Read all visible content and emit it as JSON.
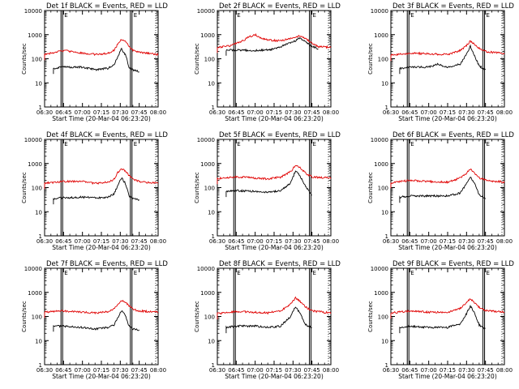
{
  "figure": {
    "colors": {
      "events": "#000000",
      "lld": "#e00000",
      "axes": "#000000"
    }
  },
  "chart_data": [
    {
      "type": "line",
      "title": "Det  1f BLACK = Events, RED = LLD",
      "xlabel": "Start Time (20-Mar-04 06:23:20)",
      "ylabel": "Counts/sec",
      "y_scale": "log",
      "ylim": [
        1,
        10000
      ],
      "xlim": [
        "06:30",
        "08:00"
      ],
      "x_ticks": [
        "06:30",
        "06:45",
        "07:00",
        "07:15",
        "07:30",
        "07:45",
        "08:00"
      ],
      "y_ticks": [
        "1",
        "10",
        "100",
        "1000",
        "10000"
      ],
      "markers": [
        {
          "x": "06:43",
          "label": "E"
        },
        {
          "x": "07:38",
          "label": "E"
        }
      ],
      "grid": false,
      "series": [
        {
          "name": "LLD",
          "color": "red",
          "x": [
            "06:30",
            "06:45",
            "07:00",
            "07:10",
            "07:20",
            "07:25",
            "07:28",
            "07:31",
            "07:34",
            "07:37",
            "07:40",
            "07:45",
            "08:00"
          ],
          "values": [
            150,
            220,
            170,
            150,
            170,
            220,
            400,
            620,
            520,
            330,
            230,
            190,
            150
          ]
        },
        {
          "name": "Events",
          "color": "black",
          "x": [
            "06:37",
            "06:45",
            "07:00",
            "07:10",
            "07:20",
            "07:25",
            "07:28",
            "07:31",
            "07:34",
            "07:37",
            "07:40",
            "07:45"
          ],
          "values": [
            40,
            45,
            45,
            35,
            40,
            55,
            120,
            260,
            150,
            45,
            35,
            30
          ]
        }
      ]
    },
    {
      "type": "line",
      "title": "Det  2f BLACK = Events, RED = LLD",
      "xlabel": "Start Time (20-Mar-04 06:23:20)",
      "ylabel": "Counts/sec",
      "y_scale": "log",
      "ylim": [
        1,
        10000
      ],
      "xlim": [
        "06:30",
        "08:00"
      ],
      "x_ticks": [
        "06:30",
        "06:45",
        "07:00",
        "07:15",
        "07:30",
        "07:45",
        "08:00"
      ],
      "y_ticks": [
        "1",
        "10",
        "100",
        "1000",
        "10000"
      ],
      "markers": [
        {
          "x": "06:43",
          "label": "E"
        },
        {
          "x": "07:43",
          "label": "E"
        }
      ],
      "grid": false,
      "series": [
        {
          "name": "LLD",
          "color": "red",
          "x": [
            "06:30",
            "06:40",
            "06:50",
            "06:55",
            "07:00",
            "07:05",
            "07:10",
            "07:20",
            "07:30",
            "07:35",
            "07:40",
            "07:45",
            "07:50",
            "08:00"
          ],
          "values": [
            300,
            340,
            550,
            800,
            1000,
            700,
            600,
            550,
            750,
            900,
            700,
            450,
            320,
            300
          ]
        },
        {
          "name": "Events",
          "color": "black",
          "x": [
            "06:37",
            "06:45",
            "07:00",
            "07:15",
            "07:30",
            "07:35",
            "07:40",
            "07:45",
            "07:50"
          ],
          "values": [
            230,
            230,
            220,
            250,
            500,
            700,
            520,
            330,
            260
          ]
        }
      ]
    },
    {
      "type": "line",
      "title": "Det  3f BLACK = Events, RED = LLD",
      "xlabel": "Start Time (20-Mar-04 06:23:20)",
      "ylabel": "Counts/sec",
      "y_scale": "log",
      "ylim": [
        1,
        10000
      ],
      "xlim": [
        "06:30",
        "08:00"
      ],
      "x_ticks": [
        "06:30",
        "06:45",
        "07:00",
        "07:15",
        "07:30",
        "07:45",
        "08:00"
      ],
      "y_ticks": [
        "1",
        "10",
        "100",
        "1000",
        "10000"
      ],
      "markers": [
        {
          "x": "06:43",
          "label": "E"
        },
        {
          "x": "07:43",
          "label": "E"
        }
      ],
      "grid": false,
      "series": [
        {
          "name": "LLD",
          "color": "red",
          "x": [
            "06:30",
            "06:45",
            "07:00",
            "07:15",
            "07:25",
            "07:30",
            "07:33",
            "07:36",
            "07:40",
            "07:45",
            "08:00"
          ],
          "values": [
            140,
            170,
            160,
            150,
            220,
            350,
            550,
            400,
            270,
            200,
            160
          ]
        },
        {
          "name": "Events",
          "color": "black",
          "x": [
            "06:37",
            "06:45",
            "07:00",
            "07:07",
            "07:15",
            "07:25",
            "07:30",
            "07:33",
            "07:36",
            "07:40",
            "07:45"
          ],
          "values": [
            40,
            45,
            45,
            60,
            45,
            60,
            150,
            330,
            150,
            50,
            35
          ]
        }
      ]
    },
    {
      "type": "line",
      "title": "Det  4f BLACK = Events, RED = LLD",
      "xlabel": "Start Time (20-Mar-04 06:23:20)",
      "ylabel": "Counts/sec",
      "y_scale": "log",
      "ylim": [
        1,
        10000
      ],
      "xlim": [
        "06:30",
        "08:00"
      ],
      "x_ticks": [
        "06:30",
        "06:45",
        "07:00",
        "07:15",
        "07:30",
        "07:45",
        "08:00"
      ],
      "y_ticks": [
        "1",
        "10",
        "100",
        "1000",
        "10000"
      ],
      "markers": [
        {
          "x": "06:43",
          "label": "E"
        },
        {
          "x": "07:38",
          "label": "E"
        }
      ],
      "grid": false,
      "series": [
        {
          "name": "LLD",
          "color": "red",
          "x": [
            "06:30",
            "06:45",
            "07:00",
            "07:10",
            "07:20",
            "07:25",
            "07:28",
            "07:31",
            "07:34",
            "07:37",
            "07:40",
            "07:45",
            "08:00"
          ],
          "values": [
            150,
            180,
            180,
            150,
            170,
            220,
            420,
            600,
            500,
            320,
            220,
            180,
            150
          ]
        },
        {
          "name": "Events",
          "color": "black",
          "x": [
            "06:37",
            "06:45",
            "07:00",
            "07:10",
            "07:20",
            "07:25",
            "07:28",
            "07:31",
            "07:34",
            "07:37",
            "07:40",
            "07:45"
          ],
          "values": [
            35,
            38,
            40,
            38,
            40,
            55,
            120,
            260,
            150,
            45,
            35,
            30
          ]
        }
      ]
    },
    {
      "type": "line",
      "title": "Det  5f BLACK = Events, RED = LLD",
      "xlabel": "Start Time (20-Mar-04 06:23:20)",
      "ylabel": "Counts/sec",
      "y_scale": "log",
      "ylim": [
        1,
        10000
      ],
      "xlim": [
        "06:30",
        "08:00"
      ],
      "x_ticks": [
        "06:30",
        "06:45",
        "07:00",
        "07:15",
        "07:30",
        "07:45",
        "08:00"
      ],
      "y_ticks": [
        "1",
        "10",
        "100",
        "1000",
        "10000"
      ],
      "markers": [
        {
          "x": "06:43",
          "label": "E"
        },
        {
          "x": "07:43",
          "label": "E"
        }
      ],
      "grid": false,
      "series": [
        {
          "name": "LLD",
          "color": "red",
          "x": [
            "06:30",
            "06:45",
            "07:00",
            "07:10",
            "07:20",
            "07:28",
            "07:32",
            "07:35",
            "07:40",
            "07:45",
            "08:00"
          ],
          "values": [
            240,
            280,
            250,
            230,
            270,
            450,
            850,
            700,
            400,
            280,
            250
          ]
        },
        {
          "name": "Events",
          "color": "black",
          "x": [
            "06:37",
            "06:45",
            "07:00",
            "07:10",
            "07:20",
            "07:28",
            "07:32",
            "07:35",
            "07:40",
            "07:45"
          ],
          "values": [
            70,
            75,
            70,
            65,
            75,
            150,
            500,
            350,
            110,
            50
          ]
        }
      ]
    },
    {
      "type": "line",
      "title": "Det  6f BLACK = Events, RED = LLD",
      "xlabel": "Start Time (20-Mar-04 06:23:20)",
      "ylabel": "Counts/sec",
      "y_scale": "log",
      "ylim": [
        1,
        10000
      ],
      "xlim": [
        "06:30",
        "08:00"
      ],
      "x_ticks": [
        "06:30",
        "06:45",
        "07:00",
        "07:15",
        "07:30",
        "07:45",
        "08:00"
      ],
      "y_ticks": [
        "1",
        "10",
        "100",
        "1000",
        "10000"
      ],
      "markers": [
        {
          "x": "06:43",
          "label": "E"
        },
        {
          "x": "07:43",
          "label": "E"
        }
      ],
      "grid": false,
      "series": [
        {
          "name": "LLD",
          "color": "red",
          "x": [
            "06:30",
            "06:45",
            "07:00",
            "07:15",
            "07:25",
            "07:30",
            "07:33",
            "07:36",
            "07:40",
            "07:45",
            "08:00"
          ],
          "values": [
            160,
            200,
            180,
            170,
            250,
            400,
            580,
            400,
            260,
            200,
            170
          ]
        },
        {
          "name": "Events",
          "color": "black",
          "x": [
            "06:37",
            "06:45",
            "07:00",
            "07:15",
            "07:25",
            "07:30",
            "07:33",
            "07:36",
            "07:40",
            "07:45"
          ],
          "values": [
            40,
            45,
            45,
            45,
            60,
            140,
            280,
            160,
            50,
            35
          ]
        }
      ]
    },
    {
      "type": "line",
      "title": "Det  7f BLACK = Events, RED = LLD",
      "xlabel": "Start Time (20-Mar-04 06:23:20)",
      "ylabel": "Counts/sec",
      "y_scale": "log",
      "ylim": [
        1,
        10000
      ],
      "xlim": [
        "06:30",
        "08:00"
      ],
      "x_ticks": [
        "06:30",
        "06:45",
        "07:00",
        "07:15",
        "07:30",
        "07:45",
        "08:00"
      ],
      "y_ticks": [
        "1",
        "10",
        "100",
        "1000",
        "10000"
      ],
      "markers": [
        {
          "x": "06:43",
          "label": "E"
        },
        {
          "x": "07:38",
          "label": "E"
        }
      ],
      "grid": false,
      "series": [
        {
          "name": "LLD",
          "color": "red",
          "x": [
            "06:30",
            "06:45",
            "07:00",
            "07:10",
            "07:20",
            "07:25",
            "07:28",
            "07:31",
            "07:34",
            "07:37",
            "07:40",
            "07:45",
            "08:00"
          ],
          "values": [
            150,
            170,
            150,
            140,
            160,
            210,
            330,
            450,
            400,
            270,
            200,
            170,
            150
          ]
        },
        {
          "name": "Events",
          "color": "black",
          "x": [
            "06:37",
            "06:45",
            "07:00",
            "07:10",
            "07:20",
            "07:25",
            "07:28",
            "07:31",
            "07:34",
            "07:37",
            "07:40",
            "07:45"
          ],
          "values": [
            40,
            40,
            35,
            30,
            35,
            45,
            90,
            170,
            110,
            40,
            30,
            28
          ]
        }
      ]
    },
    {
      "type": "line",
      "title": "Det  8f BLACK = Events, RED = LLD",
      "xlabel": "Start Time (20-Mar-04 06:23:20)",
      "ylabel": "Counts/sec",
      "y_scale": "log",
      "ylim": [
        1,
        10000
      ],
      "xlim": [
        "06:30",
        "08:00"
      ],
      "x_ticks": [
        "06:30",
        "06:45",
        "07:00",
        "07:15",
        "07:30",
        "07:45",
        "08:00"
      ],
      "y_ticks": [
        "1",
        "10",
        "100",
        "1000",
        "10000"
      ],
      "markers": [
        {
          "x": "06:43",
          "label": "E"
        },
        {
          "x": "07:43",
          "label": "E"
        }
      ],
      "grid": false,
      "series": [
        {
          "name": "LLD",
          "color": "red",
          "x": [
            "06:30",
            "06:45",
            "07:00",
            "07:10",
            "07:20",
            "07:28",
            "07:32",
            "07:35",
            "07:40",
            "07:45",
            "08:00"
          ],
          "values": [
            130,
            160,
            150,
            140,
            170,
            330,
            600,
            450,
            250,
            170,
            140
          ]
        },
        {
          "name": "Events",
          "color": "black",
          "x": [
            "06:37",
            "06:45",
            "07:00",
            "07:10",
            "07:20",
            "07:28",
            "07:32",
            "07:35",
            "07:40",
            "07:45"
          ],
          "values": [
            35,
            40,
            40,
            35,
            40,
            100,
            250,
            150,
            45,
            35
          ]
        }
      ]
    },
    {
      "type": "line",
      "title": "Det  9f BLACK = Events, RED = LLD",
      "xlabel": "Start Time (20-Mar-04 06:23:20)",
      "ylabel": "Counts/sec",
      "y_scale": "log",
      "ylim": [
        1,
        10000
      ],
      "xlim": [
        "06:30",
        "08:00"
      ],
      "x_ticks": [
        "06:30",
        "06:45",
        "07:00",
        "07:15",
        "07:30",
        "07:45",
        "08:00"
      ],
      "y_ticks": [
        "1",
        "10",
        "100",
        "1000",
        "10000"
      ],
      "markers": [
        {
          "x": "06:43",
          "label": "E"
        },
        {
          "x": "07:43",
          "label": "E"
        }
      ],
      "grid": false,
      "series": [
        {
          "name": "LLD",
          "color": "red",
          "x": [
            "06:30",
            "06:45",
            "07:00",
            "07:15",
            "07:25",
            "07:30",
            "07:33",
            "07:36",
            "07:40",
            "07:45",
            "08:00"
          ],
          "values": [
            140,
            170,
            150,
            150,
            220,
            380,
            550,
            380,
            240,
            180,
            150
          ]
        },
        {
          "name": "Events",
          "color": "black",
          "x": [
            "06:37",
            "06:45",
            "07:00",
            "07:15",
            "07:25",
            "07:30",
            "07:33",
            "07:36",
            "07:40",
            "07:45"
          ],
          "values": [
            35,
            40,
            35,
            35,
            50,
            130,
            280,
            150,
            45,
            30
          ]
        }
      ]
    }
  ]
}
